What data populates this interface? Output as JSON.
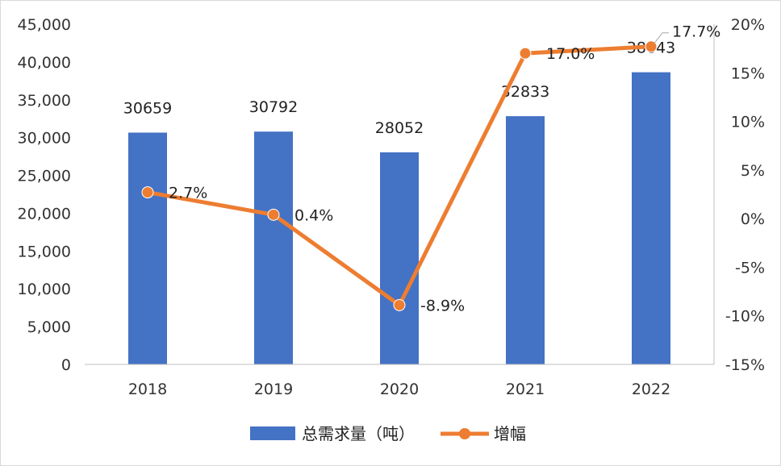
{
  "chart_data": {
    "type": "bar",
    "categories": [
      "2018",
      "2019",
      "2020",
      "2021",
      "2022"
    ],
    "series": [
      {
        "name": "总需求量（吨）",
        "type": "bar",
        "axis": "left",
        "color": "#4472C4",
        "values": [
          30659,
          30792,
          28052,
          32833,
          38643
        ],
        "labels": [
          "30659",
          "30792",
          "28052",
          "32833",
          "38643"
        ]
      },
      {
        "name": "增幅",
        "type": "line",
        "axis": "right",
        "color": "#ED7D31",
        "values": [
          2.7,
          0.4,
          -8.9,
          17.0,
          17.7
        ],
        "labels": [
          "2.7%",
          "0.4%",
          "-8.9%",
          "17.0%",
          "17.7%"
        ]
      }
    ],
    "y_left": {
      "range": [
        0,
        45000
      ],
      "ticks": [
        "0",
        "5,000",
        "10,000",
        "15,000",
        "20,000",
        "25,000",
        "30,000",
        "35,000",
        "40,000",
        "45,000"
      ]
    },
    "y_right": {
      "range": [
        -15,
        20
      ],
      "ticks": [
        "-15%",
        "-10%",
        "-5%",
        "0%",
        "5%",
        "10%",
        "15%",
        "20%"
      ]
    },
    "grid": false,
    "legend": "bottom"
  }
}
